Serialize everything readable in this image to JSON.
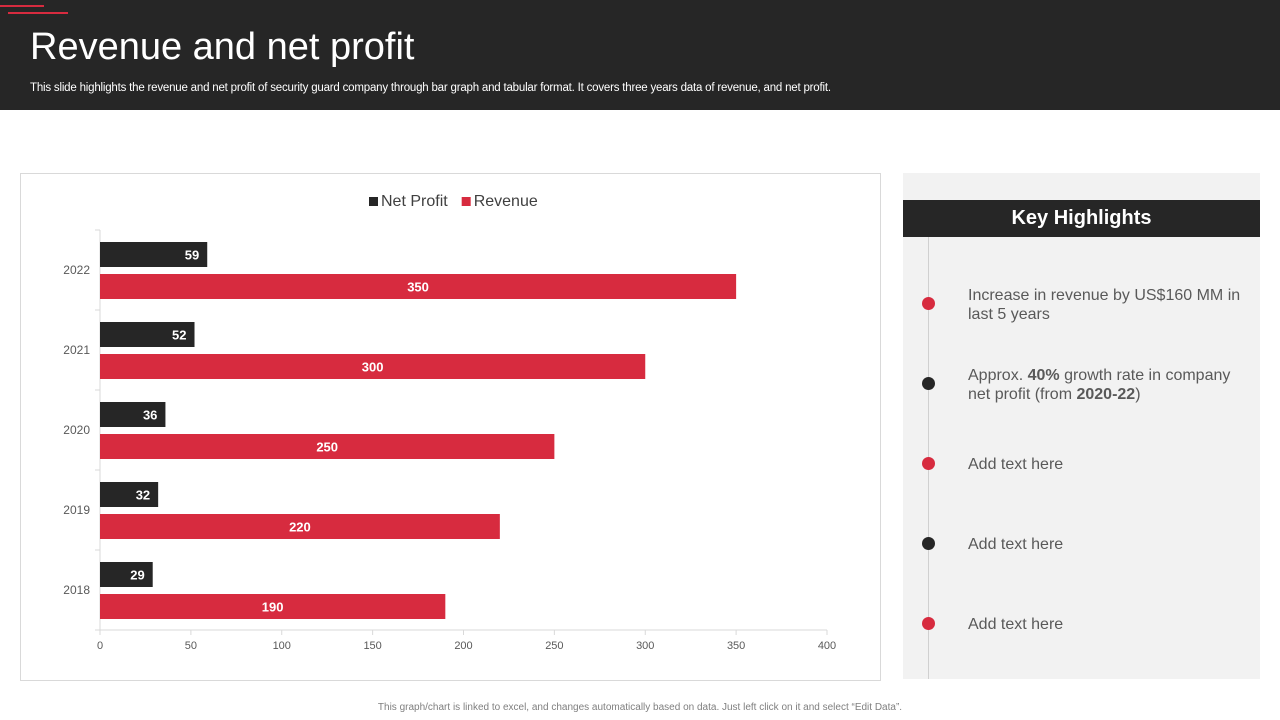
{
  "header": {
    "title": "Revenue and net profit",
    "subtitle": "This slide highlights the revenue and net profit of security guard company through bar graph and tabular format. It covers three years data of revenue, and net profit."
  },
  "chart_data": {
    "type": "bar",
    "orientation": "horizontal",
    "categories": [
      "2022",
      "2021",
      "2020",
      "2019",
      "2018"
    ],
    "series": [
      {
        "name": "Net Profit",
        "color": "#262626",
        "values": [
          59,
          52,
          36,
          32,
          29
        ]
      },
      {
        "name": "Revenue",
        "color": "#d72b3f",
        "values": [
          350,
          300,
          250,
          220,
          190
        ]
      }
    ],
    "xlim": [
      0,
      400
    ],
    "xticks": [
      0,
      50,
      100,
      150,
      200,
      250,
      300,
      350,
      400
    ],
    "legend": "top-center",
    "title": "",
    "xlabel": "",
    "ylabel": ""
  },
  "highlights": {
    "title": "Key Highlights",
    "items": [
      {
        "dot_color": "#d72b3f",
        "parts": [
          {
            "text": "Increase in revenue by US$160 MM in last 5 years",
            "bold": false
          }
        ]
      },
      {
        "dot_color": "#262626",
        "parts": [
          {
            "text": "Approx. ",
            "bold": false
          },
          {
            "text": "40%",
            "bold": true
          },
          {
            "text": " growth rate in company net profit (from ",
            "bold": false
          },
          {
            "text": "2020-22",
            "bold": true
          },
          {
            "text": ")",
            "bold": false
          }
        ]
      },
      {
        "dot_color": "#d72b3f",
        "parts": [
          {
            "text": "Add text here",
            "bold": false
          }
        ]
      },
      {
        "dot_color": "#262626",
        "parts": [
          {
            "text": "Add text here",
            "bold": false
          }
        ]
      },
      {
        "dot_color": "#d72b3f",
        "parts": [
          {
            "text": "Add text here",
            "bold": false
          }
        ]
      }
    ]
  },
  "footer": {
    "note": "This graph/chart is linked to excel, and changes automatically based on data. Just left click on it and select “Edit Data”."
  }
}
